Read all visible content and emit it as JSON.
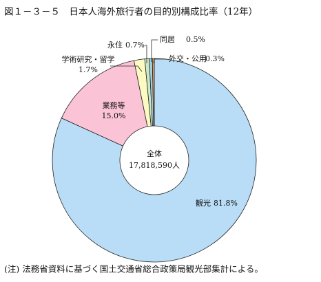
{
  "chart_data": {
    "type": "donut",
    "title": "図１－３－５　日本人海外旅行者の目的別構成比率（12年）",
    "categories": [
      "観光",
      "業務等",
      "学術研究・留学",
      "永住",
      "同居",
      "外交・公用"
    ],
    "values": [
      81.8,
      15.0,
      1.7,
      0.7,
      0.5,
      0.3
    ],
    "value_labels": [
      "81.8%",
      "15.0%",
      "1.7%",
      "0.7%",
      "0.5%",
      "0.3%"
    ],
    "colors": [
      "#b9ddf6",
      "#fbc3d6",
      "#fbfac3",
      "#cbe9c6",
      "#9fcfe0",
      "#e9a46a"
    ],
    "center_title": "全体",
    "total": 17818590,
    "total_label": "17,818,590人",
    "note": "(注)  法務省資料に基づく国土交通省総合政策局観光部集計による。"
  }
}
